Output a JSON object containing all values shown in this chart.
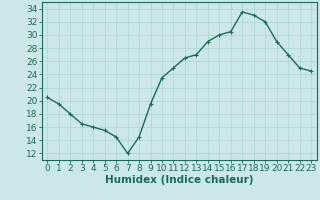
{
  "x": [
    0,
    1,
    2,
    3,
    4,
    5,
    6,
    7,
    8,
    9,
    10,
    11,
    12,
    13,
    14,
    15,
    16,
    17,
    18,
    19,
    20,
    21,
    22,
    23
  ],
  "y": [
    20.5,
    19.5,
    18,
    16.5,
    16,
    15.5,
    14.5,
    12,
    14.5,
    19.5,
    23.5,
    25,
    26.5,
    27,
    29,
    30,
    30.5,
    33.5,
    33,
    32,
    29,
    27,
    25,
    24.5
  ],
  "line_color": "#1a6b5a",
  "marker_color": "#1a6b5a",
  "background_color": "#cce8e6",
  "grid_color": "#b0d8d5",
  "xlabel": "Humidex (Indice chaleur)",
  "xlim": [
    -0.5,
    23.5
  ],
  "ylim": [
    11,
    35
  ],
  "yticks": [
    12,
    14,
    16,
    18,
    20,
    22,
    24,
    26,
    28,
    30,
    32,
    34
  ],
  "xticks": [
    0,
    1,
    2,
    3,
    4,
    5,
    6,
    7,
    8,
    9,
    10,
    11,
    12,
    13,
    14,
    15,
    16,
    17,
    18,
    19,
    20,
    21,
    22,
    23
  ],
  "xlabel_fontsize": 7.5,
  "tick_fontsize": 6.5,
  "axis_color": "#1a6b5a",
  "fig_width": 3.2,
  "fig_height": 2.0,
  "dpi": 100
}
